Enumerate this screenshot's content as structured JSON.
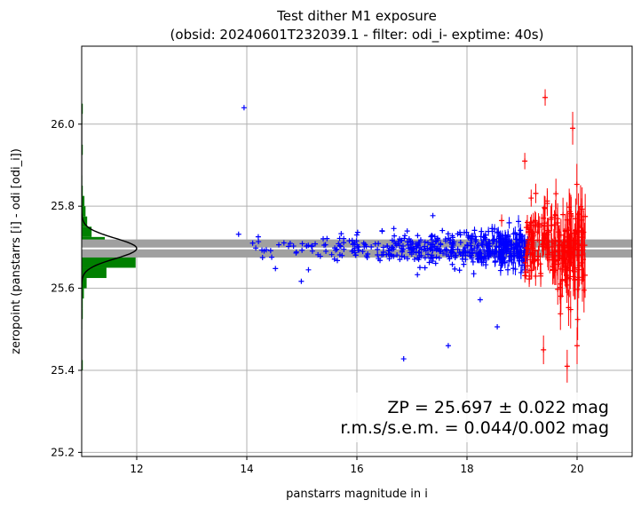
{
  "chart_data": {
    "type": "scatter",
    "title": [
      "Test dither M1 exposure",
      "(obsid: 20240601T232039.1 - filter: odi_i- exptime: 40s)"
    ],
    "xlabel": "panstarrs magnitude in i",
    "ylabel": "zeropoint (panstarrs [i] - odi [odi_i])",
    "xlim": [
      11.0,
      21.0
    ],
    "ylim": [
      25.19,
      26.19
    ],
    "xticks": [
      12,
      14,
      16,
      18,
      20
    ],
    "yticks": [
      25.2,
      25.4,
      25.6,
      25.8,
      26.0
    ],
    "ytick_labels": [
      "25.2",
      "25.4",
      "25.6",
      "25.8",
      "26.0"
    ],
    "grid": true,
    "zp_line": 25.697,
    "zp_band": [
      25.675,
      25.719
    ],
    "colors": {
      "good": "#0000ff",
      "faint": "#ff0000",
      "histogram": "#008000",
      "band": "#a0a0a0",
      "zp_line": "#ffffff",
      "gaussian": "#000000",
      "grid": "#b0b0b0"
    },
    "outliers_blue": [
      {
        "x": 13.95,
        "y": 26.04
      },
      {
        "x": 14.99,
        "y": 25.617
      },
      {
        "x": 15.12,
        "y": 25.645
      },
      {
        "x": 16.85,
        "y": 25.428
      },
      {
        "x": 17.1,
        "y": 25.633
      },
      {
        "x": 17.38,
        "y": 25.777
      },
      {
        "x": 17.66,
        "y": 25.46
      },
      {
        "x": 18.24,
        "y": 25.572
      },
      {
        "x": 18.55,
        "y": 25.506
      }
    ],
    "outliers_red": [
      {
        "x": 18.63,
        "y": 25.765,
        "err": 0.015
      },
      {
        "x": 19.42,
        "y": 26.065,
        "err": 0.02
      },
      {
        "x": 19.92,
        "y": 25.99,
        "err": 0.04
      },
      {
        "x": 19.05,
        "y": 25.91,
        "err": 0.02
      },
      {
        "x": 19.39,
        "y": 25.45,
        "err": 0.035
      },
      {
        "x": 19.82,
        "y": 25.41,
        "err": 0.04
      },
      {
        "x": 20.0,
        "y": 25.46,
        "err": 0.045
      }
    ],
    "histogram": {
      "bin_edges": [
        25.4,
        25.425,
        25.45,
        25.475,
        25.5,
        25.525,
        25.55,
        25.575,
        25.6,
        25.625,
        25.65,
        25.675,
        25.7,
        25.725,
        25.75,
        25.775,
        25.8,
        25.825,
        25.85,
        25.875,
        25.9,
        25.925,
        25.95,
        25.975,
        26.0,
        26.025,
        26.05
      ],
      "xrange": [
        11.0,
        12.0
      ],
      "counts_frac": [
        0.02,
        0.0,
        0.0,
        0.0,
        0.01,
        0.02,
        0.02,
        0.04,
        0.09,
        0.45,
        0.98,
        1.0,
        0.42,
        0.18,
        0.1,
        0.07,
        0.05,
        0.02,
        0.01,
        0.0,
        0.0,
        0.02,
        0.0,
        0.0,
        0.01,
        0.02
      ]
    },
    "annotations": [
      "ZP = 25.697 ± 0.022 mag",
      "r.m.s/s.e.m. = 0.044/0.002 mag"
    ]
  }
}
